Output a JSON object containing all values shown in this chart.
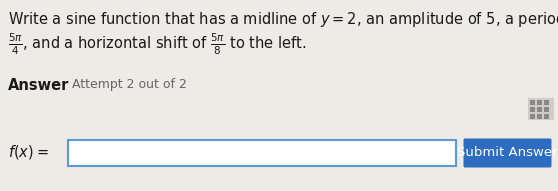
{
  "bg_color": "#eeeae5",
  "text_color": "#1a1a1a",
  "title_line1": "Write a sine function that has a midline of $y = 2$, an amplitude of 5, a period of",
  "title_line2_parts": [
    {
      "text": "$\\frac{5\\pi}{4}$",
      "math": true
    },
    {
      "text": ", and a horizontal shift of ",
      "math": false
    },
    {
      "text": "$\\frac{5\\pi}{8}$",
      "math": true
    },
    {
      "text": " to the left.",
      "math": false
    }
  ],
  "answer_label": "Answer",
  "attempt_label": "Attempt 2 out of 2",
  "fx_label": "$f(x) =$",
  "submit_text": "Submit Answer",
  "input_box_color": "#ffffff",
  "input_box_border": "#5b9bd5",
  "submit_btn_color": "#2d6cc0",
  "submit_btn_text_color": "#ffffff",
  "icon_bg": "#d0ccc8",
  "icon_cell": "#888888",
  "title_fontsize": 10.5,
  "label_fontsize": 10.5,
  "answer_fontsize": 10.5,
  "attempt_fontsize": 9.0,
  "submit_fontsize": 9.5
}
